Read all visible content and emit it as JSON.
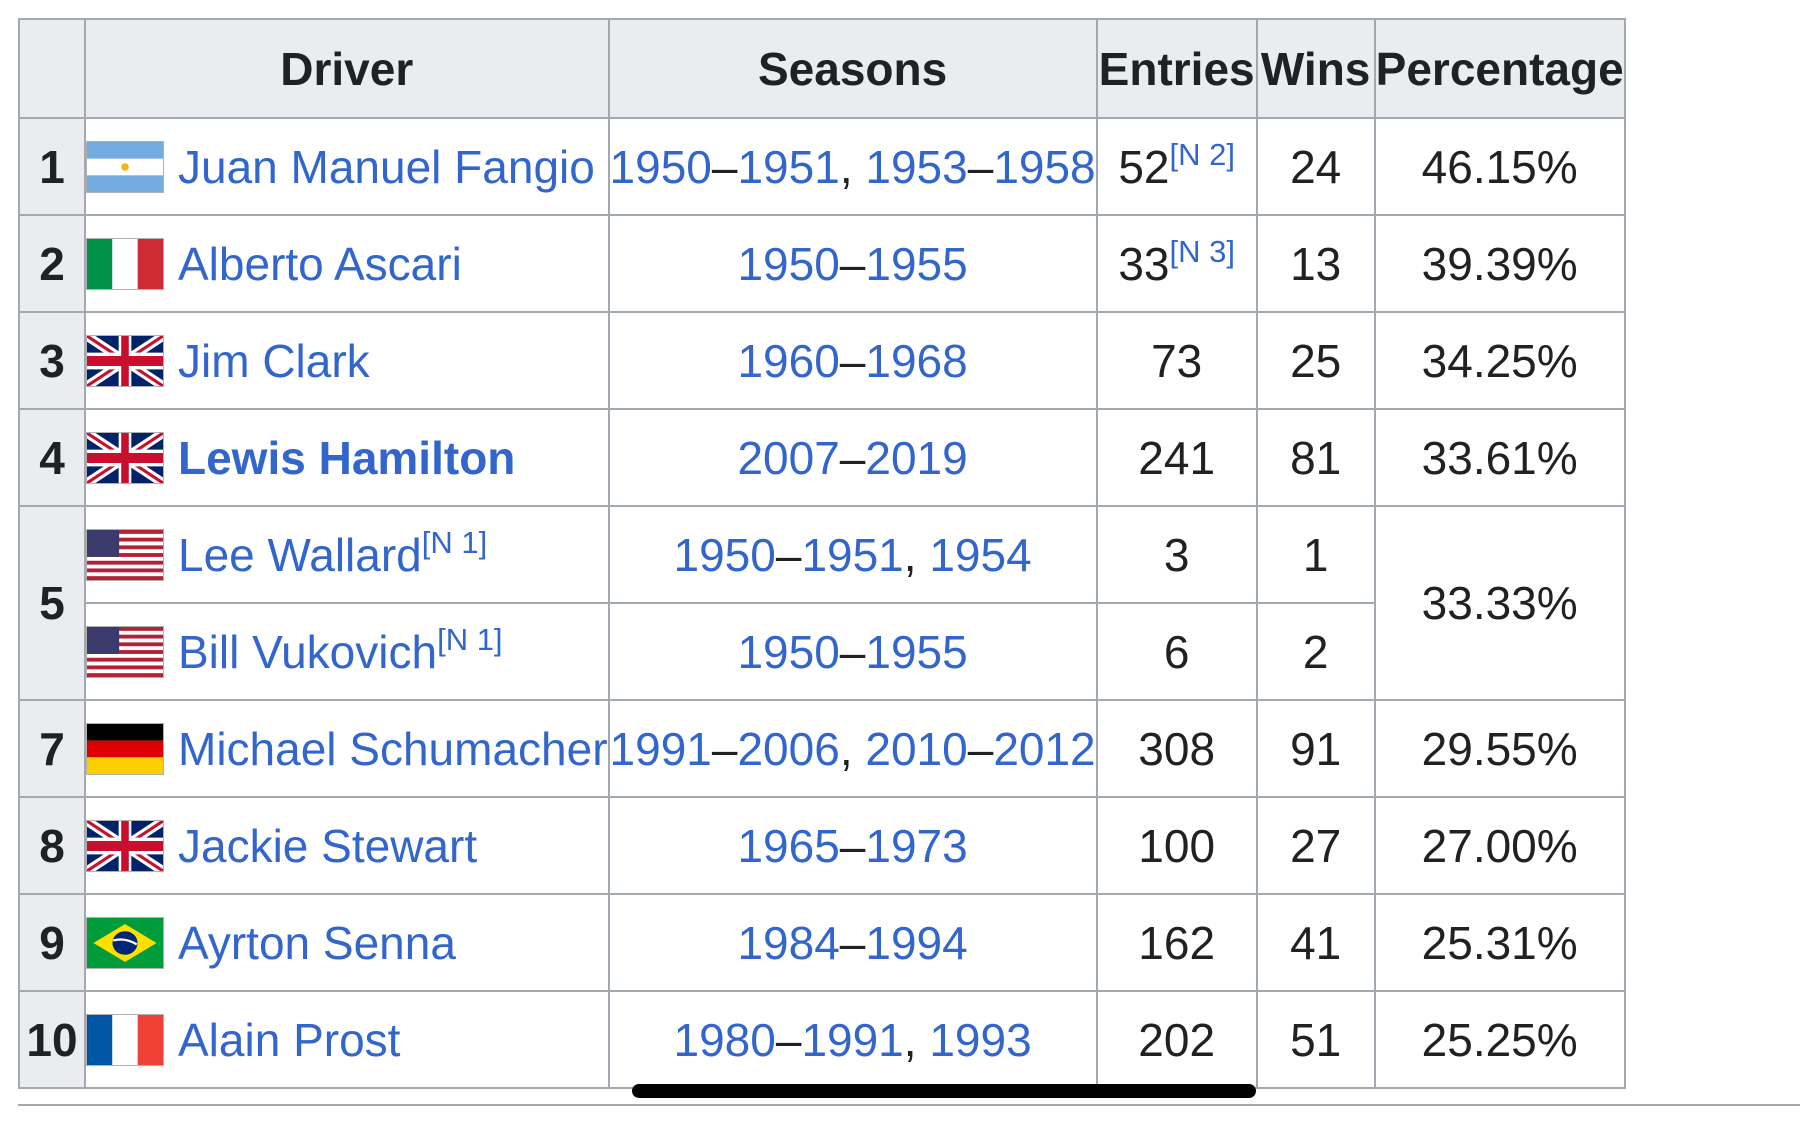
{
  "table": {
    "headers": {
      "rank": "",
      "driver": "Driver",
      "seasons": "Seasons",
      "entries": "Entries",
      "wins": "Wins",
      "percentage": "Percentage"
    },
    "rows": [
      {
        "rank": "1",
        "flag": "argentina-flag",
        "driver": "Juan Manuel Fangio",
        "driver_note": "",
        "seasons": [
          {
            "a": "1950",
            "b": "1951"
          },
          {
            "a": "1953",
            "b": "1958"
          }
        ],
        "entries": "52",
        "entries_note": "[N 2]",
        "wins": "24",
        "percentage": "46.15%"
      },
      {
        "rank": "2",
        "flag": "italy-flag",
        "driver": "Alberto Ascari",
        "driver_note": "",
        "seasons": [
          {
            "a": "1950",
            "b": "1955"
          }
        ],
        "entries": "33",
        "entries_note": "[N 3]",
        "wins": "13",
        "percentage": "39.39%"
      },
      {
        "rank": "3",
        "flag": "uk-flag",
        "driver": "Jim Clark",
        "driver_note": "",
        "seasons": [
          {
            "a": "1960",
            "b": "1968"
          }
        ],
        "entries": "73",
        "entries_note": "",
        "wins": "25",
        "percentage": "34.25%"
      },
      {
        "rank": "4",
        "flag": "uk-flag",
        "driver": "Lewis Hamilton",
        "driver_note": "",
        "bold": true,
        "seasons": [
          {
            "a": "2007",
            "b": "2019"
          }
        ],
        "entries": "241",
        "entries_note": "",
        "wins": "81",
        "percentage": "33.61%"
      },
      {
        "rank": "5",
        "flag": "usa-flag",
        "driver": "Lee Wallard",
        "driver_note": "[N 1]",
        "seasons": [
          {
            "a": "1950",
            "b": "1951"
          },
          {
            "a": "1954",
            "b": ""
          }
        ],
        "entries": "3",
        "entries_note": "",
        "wins": "1",
        "percentage": "33.33%"
      },
      {
        "rank": "",
        "flag": "usa-flag",
        "driver": "Bill Vukovich",
        "driver_note": "[N 1]",
        "seasons": [
          {
            "a": "1950",
            "b": "1955"
          }
        ],
        "entries": "6",
        "entries_note": "",
        "wins": "2",
        "percentage": ""
      },
      {
        "rank": "7",
        "flag": "germany-flag",
        "driver": "Michael Schumacher",
        "driver_note": "",
        "seasons": [
          {
            "a": "1991",
            "b": "2006"
          },
          {
            "a": "2010",
            "b": "2012"
          }
        ],
        "entries": "308",
        "entries_note": "",
        "wins": "91",
        "percentage": "29.55%"
      },
      {
        "rank": "8",
        "flag": "uk-flag",
        "driver": "Jackie Stewart",
        "driver_note": "",
        "seasons": [
          {
            "a": "1965",
            "b": "1973"
          }
        ],
        "entries": "100",
        "entries_note": "",
        "wins": "27",
        "percentage": "27.00%"
      },
      {
        "rank": "9",
        "flag": "brazil-flag",
        "driver": "Ayrton Senna",
        "driver_note": "",
        "seasons": [
          {
            "a": "1984",
            "b": "1994"
          }
        ],
        "entries": "162",
        "entries_note": "",
        "wins": "41",
        "percentage": "25.31%"
      },
      {
        "rank": "10",
        "flag": "france-flag",
        "driver": "Alain Prost",
        "driver_note": "",
        "seasons": [
          {
            "a": "1980",
            "b": "1991"
          },
          {
            "a": "1993",
            "b": ""
          }
        ],
        "entries": "202",
        "entries_note": "",
        "wins": "51",
        "percentage": "25.25%"
      }
    ]
  },
  "colors": {
    "link": "#3366cc",
    "header_bg": "#eaecf0",
    "border": "#a2a9b1",
    "text": "#202122"
  }
}
